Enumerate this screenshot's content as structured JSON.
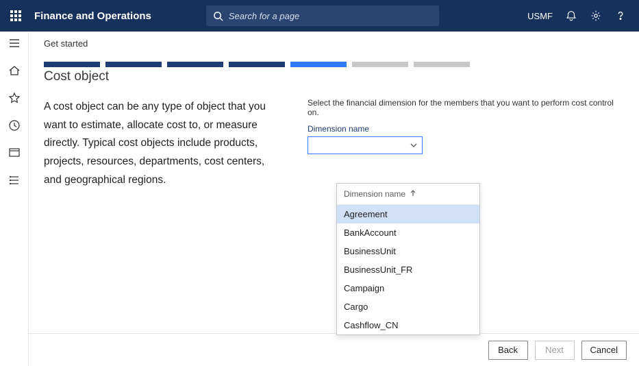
{
  "header": {
    "appTitle": "Finance and Operations",
    "searchPlaceholder": "Search for a page",
    "company": "USMF"
  },
  "breadcrumb": "Get started",
  "pageTitle": "Cost object",
  "progress": {
    "total": 7,
    "doneCount": 4,
    "currentIndex": 4,
    "colors": {
      "done": "#1f3c74",
      "current": "#2f7cf6",
      "future": "#c8c8c8"
    }
  },
  "leftDescription": "A cost object can be any type of object that you want to estimate, allocate cost to, or measure directly. Typical cost objects include products, projects, resources, departments, cost centers, and geographical regions.",
  "form": {
    "instruction": "Select the financial dimension for the members that you want to perform cost control on.",
    "fieldLabel": "Dimension name",
    "value": ""
  },
  "dropdown": {
    "headerLabel": "Dimension name",
    "sortAscending": true,
    "selectedIndex": 0,
    "options": [
      "Agreement",
      "BankAccount",
      "BusinessUnit",
      "BusinessUnit_FR",
      "Campaign",
      "Cargo",
      "Cashflow_CN"
    ]
  },
  "footer": {
    "back": "Back",
    "next": "Next",
    "cancel": "Cancel",
    "nextEnabled": false
  }
}
